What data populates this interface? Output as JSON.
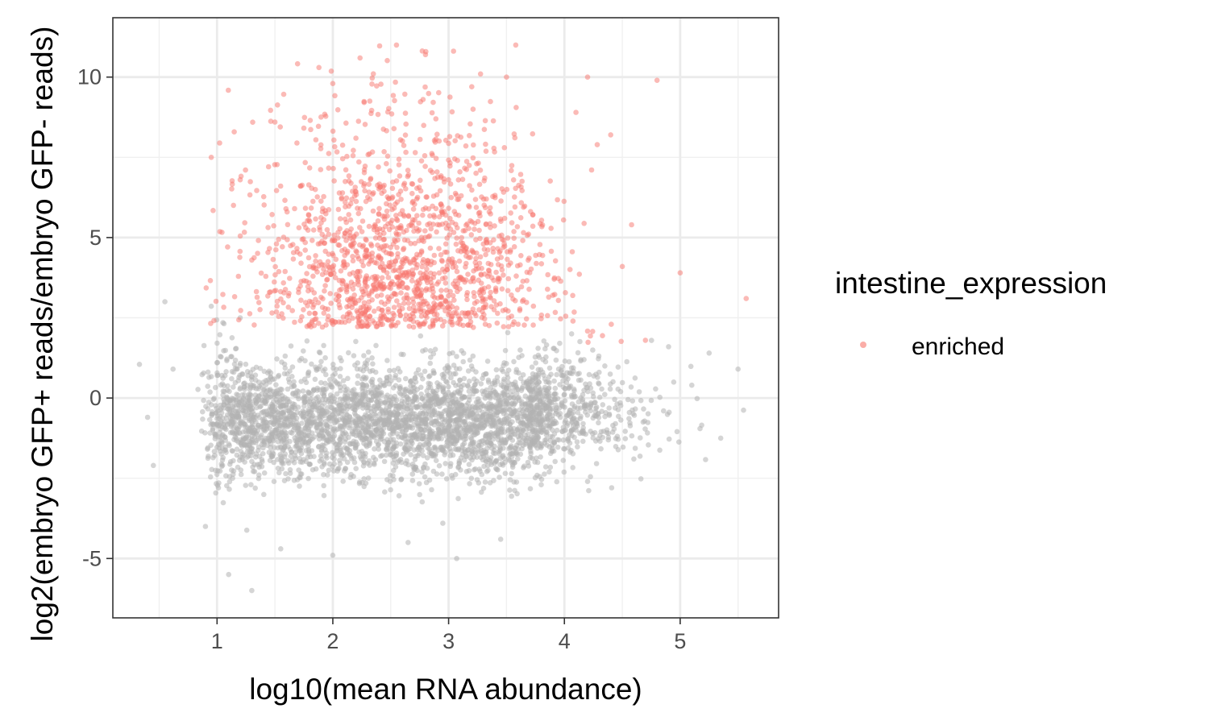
{
  "chart_data": {
    "type": "scatter",
    "title": "",
    "xlabel": "log10(mean RNA abundance)",
    "ylabel": "log2(embryo GFP+ reads/embryo GFP- reads)",
    "xlim": [
      0.1,
      5.85
    ],
    "ylim": [
      -6.85,
      11.85
    ],
    "x_ticks": [
      1,
      2,
      3,
      4,
      5
    ],
    "x_tick_labels": [
      "1",
      "2",
      "3",
      "4",
      "5"
    ],
    "y_ticks": [
      -5,
      0,
      5,
      10
    ],
    "y_tick_labels": [
      "-5",
      "0",
      "5",
      "10"
    ],
    "grid": true,
    "legend": {
      "title": "intestine_expression",
      "position": "right",
      "entries": [
        {
          "label": "enriched",
          "color": "#f8766d"
        }
      ]
    },
    "series": [
      {
        "name": "enriched",
        "color": "#f8766d",
        "opacity": 0.5,
        "description": "red cloud: x 0.9-4.9, y 2-11, densest near x 2.5-3, y 3-6",
        "sample_points": [
          [
            0.95,
            7.5
          ],
          [
            1.2,
            6.8
          ],
          [
            1.5,
            8.6
          ],
          [
            1.88,
            10.3
          ],
          [
            2,
            9.8
          ],
          [
            2.35,
            10.1
          ],
          [
            2.55,
            11
          ],
          [
            2.8,
            10.7
          ],
          [
            3.2,
            9.7
          ],
          [
            3.5,
            10
          ],
          [
            3.58,
            11
          ],
          [
            4.2,
            10
          ],
          [
            4.8,
            9.9
          ],
          [
            4.1,
            8.9
          ],
          [
            4.4,
            8.2
          ],
          [
            4.58,
            5.4
          ],
          [
            4.5,
            4.1
          ],
          [
            5,
            3.9
          ],
          [
            5.57,
            3.1
          ],
          [
            4.7,
            1.8
          ],
          [
            3.6,
            2.3
          ],
          [
            2.5,
            4.5
          ],
          [
            2.7,
            5.2
          ],
          [
            3,
            6.8
          ],
          [
            2.2,
            3.8
          ],
          [
            1.8,
            5.5
          ],
          [
            1.3,
            4.3
          ],
          [
            3.3,
            4.8
          ],
          [
            3.9,
            3.2
          ],
          [
            2.9,
            2.6
          ]
        ]
      },
      {
        "name": "",
        "color": "#b3b3b3",
        "opacity": 0.55,
        "description": "gray cloud: x 0.4-5.5, y -6 to 3, densest near x 1-3.7, y -2 to 1",
        "sample_points": [
          [
            0.33,
            1.05
          ],
          [
            0.4,
            -0.6
          ],
          [
            0.45,
            -2.1
          ],
          [
            0.55,
            3
          ],
          [
            0.62,
            0.9
          ],
          [
            0.9,
            -4
          ],
          [
            1.1,
            -5.5
          ],
          [
            1.3,
            -6
          ],
          [
            1.55,
            -4.7
          ],
          [
            2,
            -4.9
          ],
          [
            2.65,
            -4.5
          ],
          [
            2.95,
            -3.9
          ],
          [
            3.07,
            -5
          ],
          [
            3.45,
            -4.4
          ],
          [
            3.8,
            -2.7
          ],
          [
            4.2,
            -2.6
          ],
          [
            4.6,
            -1.9
          ],
          [
            5.1,
            0.4
          ],
          [
            5.35,
            -1.25
          ],
          [
            5.5,
            0.9
          ],
          [
            5.25,
            1.4
          ],
          [
            4.9,
            1.6
          ],
          [
            4.3,
            0.8
          ],
          [
            3.5,
            0.3
          ],
          [
            2.5,
            -0.5
          ],
          [
            1.5,
            -1
          ],
          [
            1.2,
            2.5
          ],
          [
            2.8,
            1.5
          ],
          [
            3.9,
            -0.8
          ],
          [
            2.2,
            -2.2
          ]
        ]
      }
    ]
  }
}
